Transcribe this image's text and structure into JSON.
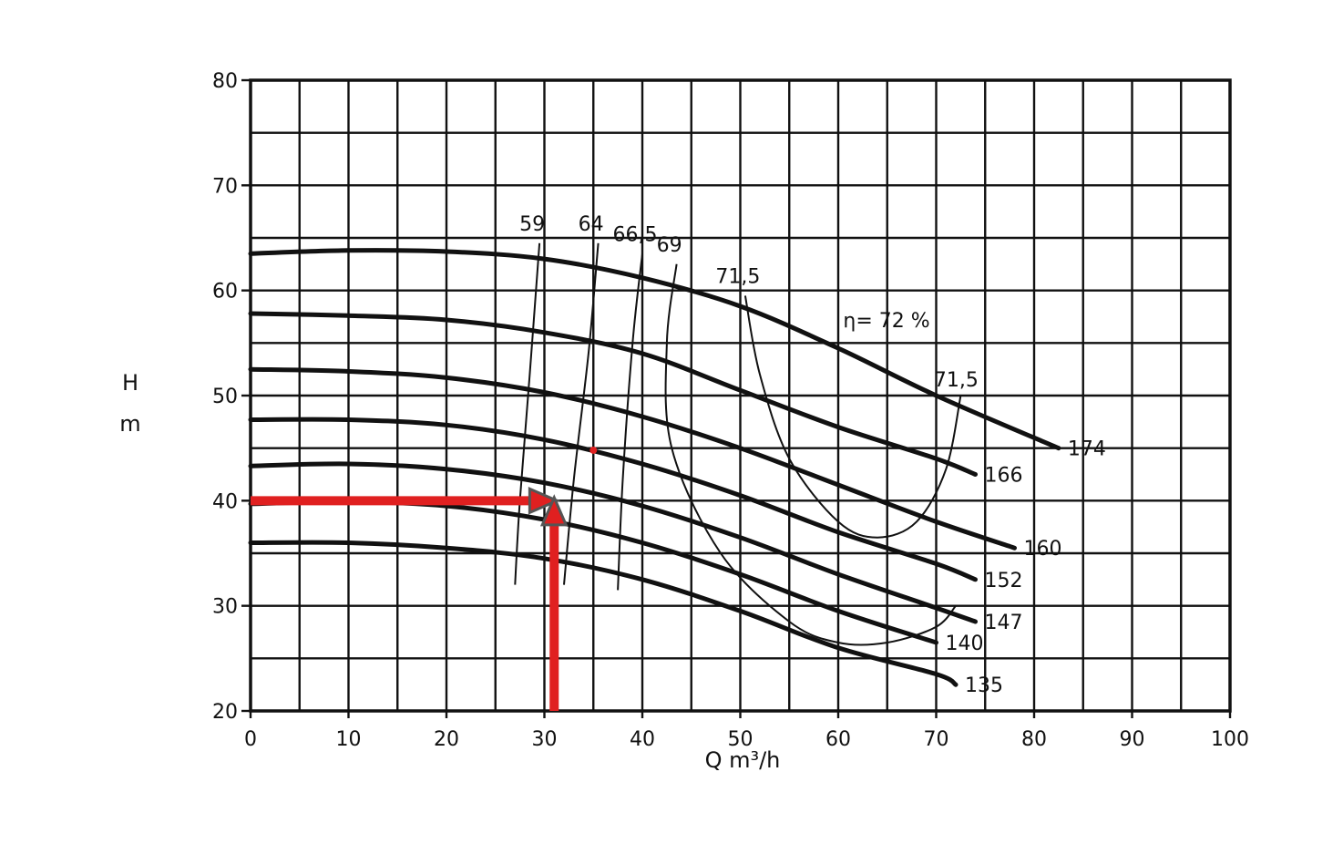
{
  "chart_data": {
    "type": "line",
    "title": "",
    "xlabel": "Q m³/h",
    "ylabel_line1": "H",
    "ylabel_line2": "m",
    "xlim": [
      0,
      100
    ],
    "ylim": [
      20,
      80
    ],
    "grid": true,
    "x_ticks": [
      "0",
      "10",
      "20",
      "30",
      "40",
      "50",
      "60",
      "70",
      "80",
      "90",
      "100"
    ],
    "y_ticks": [
      "20",
      "30",
      "40",
      "50",
      "60",
      "70",
      "80"
    ],
    "series": [
      {
        "name": "174",
        "x": [
          0,
          10,
          20,
          30,
          40,
          50,
          60,
          70,
          82.5
        ],
        "y": [
          63.5,
          63.8,
          63.7,
          63.0,
          61.2,
          58.5,
          54.5,
          50.0,
          45.0
        ]
      },
      {
        "name": "166",
        "x": [
          0,
          10,
          20,
          30,
          40,
          50,
          60,
          70,
          74
        ],
        "y": [
          57.8,
          57.6,
          57.2,
          56.0,
          54.0,
          50.5,
          47.0,
          44.0,
          42.5
        ]
      },
      {
        "name": "160",
        "x": [
          0,
          10,
          20,
          30,
          40,
          50,
          60,
          70,
          78
        ],
        "y": [
          52.5,
          52.3,
          51.7,
          50.3,
          48.0,
          45.0,
          41.5,
          38.0,
          35.5
        ]
      },
      {
        "name": "152",
        "x": [
          0,
          10,
          20,
          30,
          40,
          50,
          60,
          70,
          74
        ],
        "y": [
          47.7,
          47.7,
          47.2,
          45.8,
          43.5,
          40.5,
          37.0,
          34.0,
          32.5
        ]
      },
      {
        "name": "147",
        "x": [
          0,
          10,
          20,
          30,
          40,
          50,
          60,
          70,
          74
        ],
        "y": [
          43.3,
          43.5,
          43.0,
          41.7,
          39.5,
          36.5,
          33.0,
          29.8,
          28.5
        ]
      },
      {
        "name": "140",
        "x": [
          0,
          10,
          20,
          30,
          40,
          50,
          60,
          70
        ],
        "y": [
          39.7,
          39.9,
          39.5,
          38.2,
          36.0,
          33.0,
          29.5,
          26.5
        ]
      },
      {
        "name": "135",
        "x": [
          0,
          10,
          20,
          30,
          40,
          50,
          60,
          70,
          72
        ],
        "y": [
          36.0,
          36.0,
          35.5,
          34.5,
          32.5,
          29.5,
          26.0,
          23.5,
          22.5
        ]
      }
    ],
    "efficiency_curves": [
      {
        "label": "59",
        "x": [
          27.0,
          27.5,
          28.5,
          29.5
        ],
        "y": [
          32.0,
          40.0,
          52.0,
          64.5
        ]
      },
      {
        "label": "64",
        "x": [
          32.0,
          33.0,
          34.5,
          35.5
        ],
        "y": [
          32.0,
          42.0,
          54.0,
          64.5
        ]
      },
      {
        "label": "66,5",
        "x": [
          37.5,
          38.0,
          39.0,
          40.0
        ],
        "y": [
          31.5,
          42.0,
          55.0,
          63.5
        ]
      },
      {
        "label": "69",
        "x": [
          43.5,
          42.5,
          43.0,
          48.0,
          55.0,
          60.0,
          65.0,
          70.0,
          72.0
        ],
        "y": [
          62.5,
          55.0,
          45.0,
          35.0,
          28.5,
          26.5,
          26.5,
          28.0,
          30.0
        ]
      },
      {
        "label": "71,5",
        "x": [
          50.5,
          52.0,
          55.0,
          60.0,
          64.0,
          68.0,
          71.0,
          72.5
        ],
        "y": [
          59.5,
          52.0,
          44.0,
          38.0,
          36.5,
          38.0,
          43.0,
          50.0
        ]
      }
    ],
    "efficiency_annotation": "η= 72 %",
    "operating_point": {
      "x": 35,
      "y": 44.8
    },
    "marker_lines": {
      "from_y_axis_at": 40,
      "to_x": 30.5,
      "from_x_axis_at": 31,
      "to_y": 39.5,
      "color": "#e02020"
    }
  }
}
